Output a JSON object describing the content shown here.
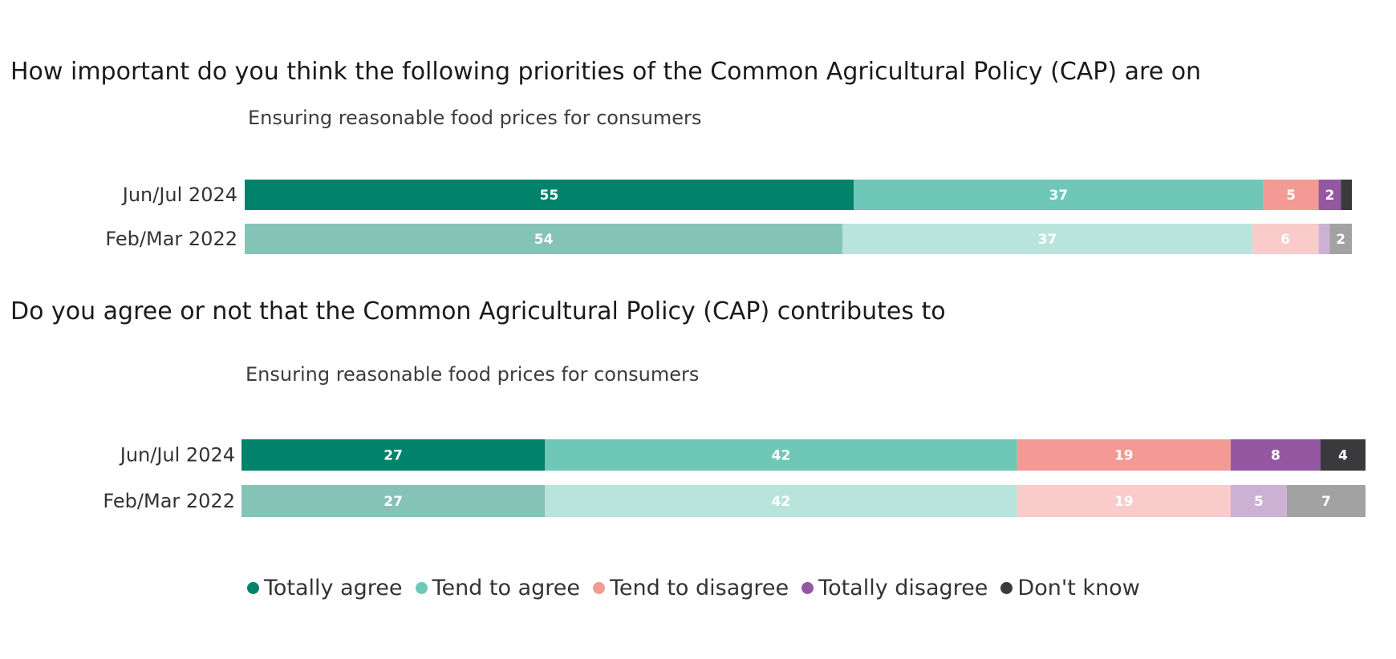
{
  "headings": {
    "chart1": "How important do you think the following priorities of the Common Agricultural Policy (CAP) are on",
    "chart2": "Do you agree or not that the Common Agricultural Policy (CAP) contributes to"
  },
  "legend": [
    {
      "label": "Totally agree",
      "color": "#00826b"
    },
    {
      "label": "Tend to agree",
      "color": "#6fc8b7"
    },
    {
      "label": "Tend to disagree",
      "color": "#f49a94"
    },
    {
      "label": "Totally disagree",
      "color": "#9458a2"
    },
    {
      "label": "Don't know",
      "color": "#3a3a3c"
    }
  ],
  "colors_current": [
    "#00826b",
    "#6fc8b7",
    "#f49a94",
    "#9458a2",
    "#3a3a3c"
  ],
  "colors_previous": [
    "#86c3b7",
    "#b9e4db",
    "#f9cbcb",
    "#cdb1d5",
    "#a2a2a3"
  ],
  "chart_data": [
    {
      "type": "bar",
      "orientation": "horizontal",
      "stacked": true,
      "title": "Ensuring reasonable food prices for consumers",
      "categories": [
        "Jun/Jul 2024",
        "Feb/Mar 2022"
      ],
      "series": [
        {
          "name": "Totally agree",
          "values": [
            55,
            54
          ]
        },
        {
          "name": "Tend to agree",
          "values": [
            37,
            37
          ]
        },
        {
          "name": "Tend to disagree",
          "values": [
            5,
            6
          ]
        },
        {
          "name": "Totally disagree",
          "values": [
            2,
            1
          ]
        },
        {
          "name": "Don't know",
          "values": [
            1,
            2
          ]
        }
      ],
      "data_labels": [
        [
          "55",
          "37",
          "5",
          "2",
          ""
        ],
        [
          "54",
          "37",
          "6",
          "",
          "2"
        ]
      ]
    },
    {
      "type": "bar",
      "orientation": "horizontal",
      "stacked": true,
      "title": "Ensuring reasonable food prices for consumers",
      "categories": [
        "Jun/Jul 2024",
        "Feb/Mar 2022"
      ],
      "series": [
        {
          "name": "Totally agree",
          "values": [
            27,
            27
          ]
        },
        {
          "name": "Tend to agree",
          "values": [
            42,
            42
          ]
        },
        {
          "name": "Tend to disagree",
          "values": [
            19,
            19
          ]
        },
        {
          "name": "Totally disagree",
          "values": [
            8,
            5
          ]
        },
        {
          "name": "Don't know",
          "values": [
            4,
            7
          ]
        }
      ],
      "data_labels": [
        [
          "27",
          "42",
          "19",
          "8",
          "4"
        ],
        [
          "27",
          "42",
          "19",
          "5",
          "7"
        ]
      ]
    }
  ]
}
